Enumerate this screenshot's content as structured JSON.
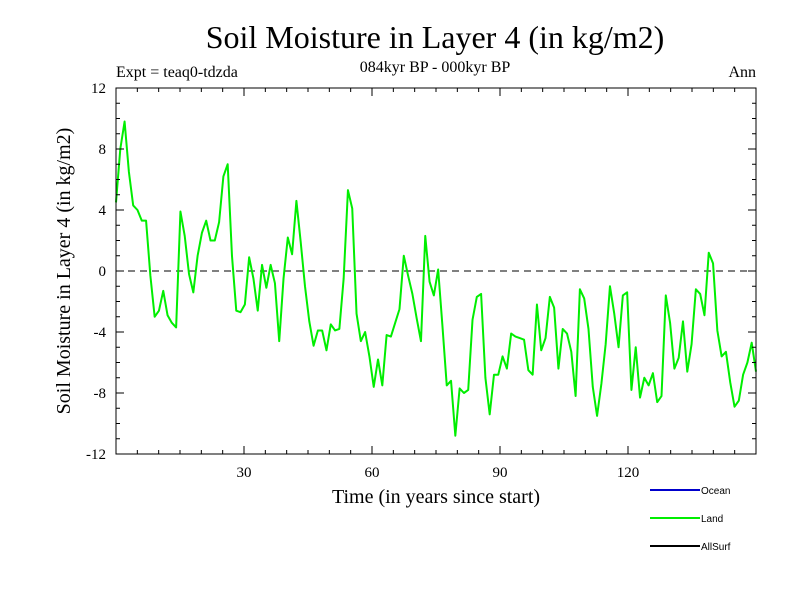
{
  "chart_data": {
    "type": "line",
    "title": "Soil Moisture in Layer 4 (in kg/m2)",
    "subtitle": "084kyr BP - 000kyr BP",
    "experiment": "Expt = teaq0-tdzda",
    "season": "Ann",
    "xlabel": "Time (in years since start)",
    "ylabel": "Soil Moisture in Layer 4 (in kg/m2)",
    "xlim": [
      0,
      150
    ],
    "ylim": [
      -12,
      12
    ],
    "xticks": [
      30,
      60,
      90,
      120
    ],
    "yticks": [
      -12,
      -8,
      -4,
      0,
      4,
      8,
      12
    ],
    "zero_line": "dashed",
    "legend": [
      {
        "name": "Ocean",
        "color": "#0000cc"
      },
      {
        "name": "Land",
        "color": "#00ee00"
      },
      {
        "name": "AllSurf",
        "color": "#000000"
      }
    ],
    "series": [
      {
        "name": "Land",
        "color": "#00ee00",
        "values": [
          4.5,
          8.0,
          9.8,
          6.5,
          4.3,
          4.0,
          3.3,
          3.3,
          -0.3,
          -3.0,
          -2.6,
          -1.3,
          -2.9,
          -3.4,
          -3.7,
          3.9,
          2.3,
          -0.2,
          -1.4,
          1.0,
          2.5,
          3.3,
          2.0,
          2.0,
          3.2,
          6.2,
          7.0,
          1.0,
          -2.6,
          -2.7,
          -2.2,
          0.9,
          -0.5,
          -2.6,
          0.4,
          -1.1,
          0.4,
          -0.8,
          -4.6,
          -0.5,
          2.2,
          1.1,
          4.6,
          1.9,
          -1.0,
          -3.3,
          -4.9,
          -3.9,
          -3.9,
          -5.2,
          -3.5,
          -3.9,
          -3.8,
          -0.5,
          5.3,
          4.1,
          -2.8,
          -4.6,
          -4.0,
          -5.6,
          -7.6,
          -5.8,
          -7.5,
          -4.2,
          -4.3,
          -3.4,
          -2.5,
          1.0,
          -0.3,
          -1.5,
          -3.1,
          -4.6,
          2.3,
          -0.7,
          -1.6,
          0.1,
          -3.6,
          -7.5,
          -7.2,
          -10.8,
          -7.7,
          -8.0,
          -7.8,
          -3.2,
          -1.7,
          -1.5,
          -7.0,
          -9.4,
          -6.8,
          -6.8,
          -5.6,
          -6.4,
          -4.1,
          -4.3,
          -4.4,
          -4.5,
          -6.5,
          -6.8,
          -2.2,
          -5.2,
          -4.4,
          -1.7,
          -2.4,
          -6.4,
          -3.8,
          -4.1,
          -5.3,
          -8.2,
          -1.2,
          -1.8,
          -3.8,
          -7.6,
          -9.5,
          -7.4,
          -4.8,
          -1.0,
          -2.8,
          -5.0,
          -1.6,
          -1.4,
          -7.8,
          -5.0,
          -8.3,
          -7.0,
          -7.5,
          -6.7,
          -8.6,
          -8.2,
          -1.6,
          -3.4,
          -6.4,
          -5.7,
          -3.3,
          -6.6,
          -4.8,
          -1.2,
          -1.5,
          -2.9,
          1.2,
          0.5,
          -3.9,
          -5.6,
          -5.3,
          -7.3,
          -8.9,
          -8.5,
          -6.8,
          -6.0,
          -4.7,
          -6.6
        ]
      }
    ]
  }
}
